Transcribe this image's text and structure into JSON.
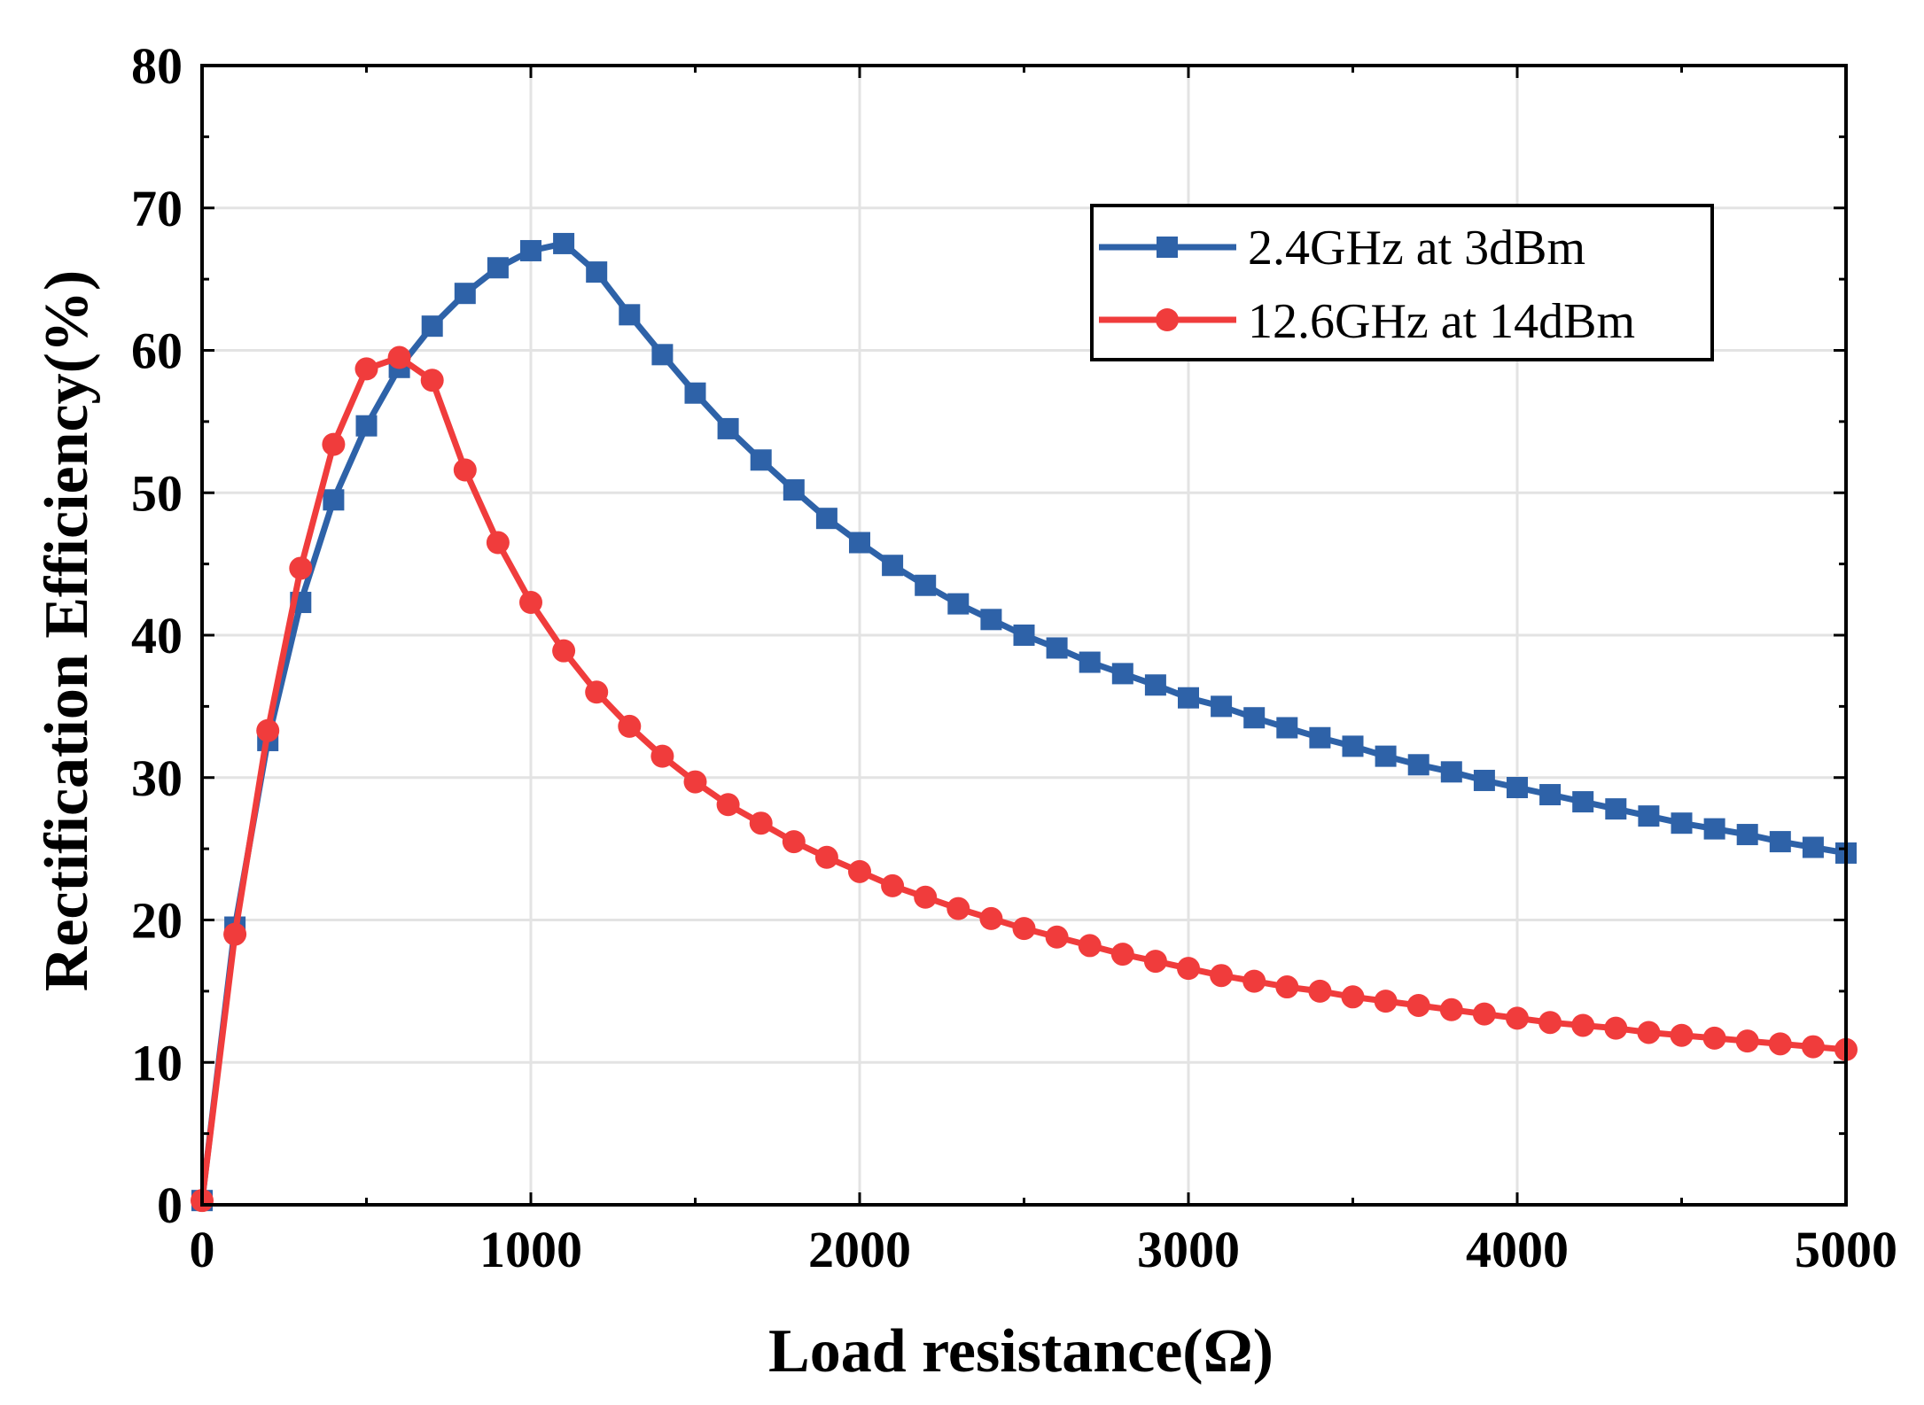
{
  "chart_data": {
    "type": "line",
    "title": "",
    "xlabel": "Load resistance(Ω)",
    "ylabel": "Rectification Efficiency(%)",
    "xlim": [
      0,
      5000
    ],
    "ylim": [
      0,
      80
    ],
    "xticks": [
      0,
      1000,
      2000,
      3000,
      4000,
      5000
    ],
    "yticks": [
      0,
      10,
      20,
      30,
      40,
      50,
      60,
      70,
      80
    ],
    "xtick_labels": [
      "0",
      "1000",
      "2000",
      "3000",
      "4000",
      "5000"
    ],
    "ytick_labels": [
      "0",
      "10",
      "20",
      "30",
      "40",
      "50",
      "60",
      "70",
      "80"
    ],
    "grid": true,
    "legend_position": "top-right",
    "x": [
      0,
      100,
      200,
      300,
      400,
      500,
      600,
      700,
      800,
      900,
      1000,
      1100,
      1200,
      1300,
      1400,
      1500,
      1600,
      1700,
      1800,
      1900,
      2000,
      2100,
      2200,
      2300,
      2400,
      2500,
      2600,
      2700,
      2800,
      2900,
      3000,
      3100,
      3200,
      3300,
      3400,
      3500,
      3600,
      3700,
      3800,
      3900,
      4000,
      4100,
      4200,
      4300,
      4400,
      4500,
      4600,
      4700,
      4800,
      4900,
      5000
    ],
    "series": [
      {
        "name": "2.4GHz at 3dBm",
        "color": "#2e62a8",
        "marker": "square",
        "values": [
          0.3,
          19.5,
          32.6,
          42.3,
          49.5,
          54.7,
          58.8,
          61.7,
          64.0,
          65.8,
          67.0,
          67.5,
          65.5,
          62.5,
          59.7,
          57.0,
          54.5,
          52.3,
          50.2,
          48.2,
          46.5,
          44.9,
          43.5,
          42.2,
          41.1,
          40.0,
          39.1,
          38.1,
          37.3,
          36.5,
          35.6,
          35.0,
          34.2,
          33.5,
          32.8,
          32.2,
          31.5,
          30.9,
          30.4,
          29.8,
          29.3,
          28.8,
          28.3,
          27.8,
          27.3,
          26.8,
          26.4,
          26.0,
          25.5,
          25.1,
          24.7
        ]
      },
      {
        "name": "12.6GHz at 14dBm",
        "color": "#f03c3c",
        "marker": "circle",
        "values": [
          0.3,
          19.0,
          33.3,
          44.7,
          53.4,
          58.7,
          59.5,
          57.9,
          51.6,
          46.5,
          42.3,
          38.9,
          36.0,
          33.6,
          31.5,
          29.7,
          28.1,
          26.8,
          25.5,
          24.4,
          23.4,
          22.4,
          21.6,
          20.8,
          20.1,
          19.4,
          18.8,
          18.2,
          17.6,
          17.1,
          16.6,
          16.1,
          15.7,
          15.3,
          15.0,
          14.6,
          14.3,
          14.0,
          13.7,
          13.4,
          13.1,
          12.8,
          12.6,
          12.4,
          12.1,
          11.9,
          11.7,
          11.5,
          11.3,
          11.1,
          10.9
        ]
      }
    ]
  }
}
